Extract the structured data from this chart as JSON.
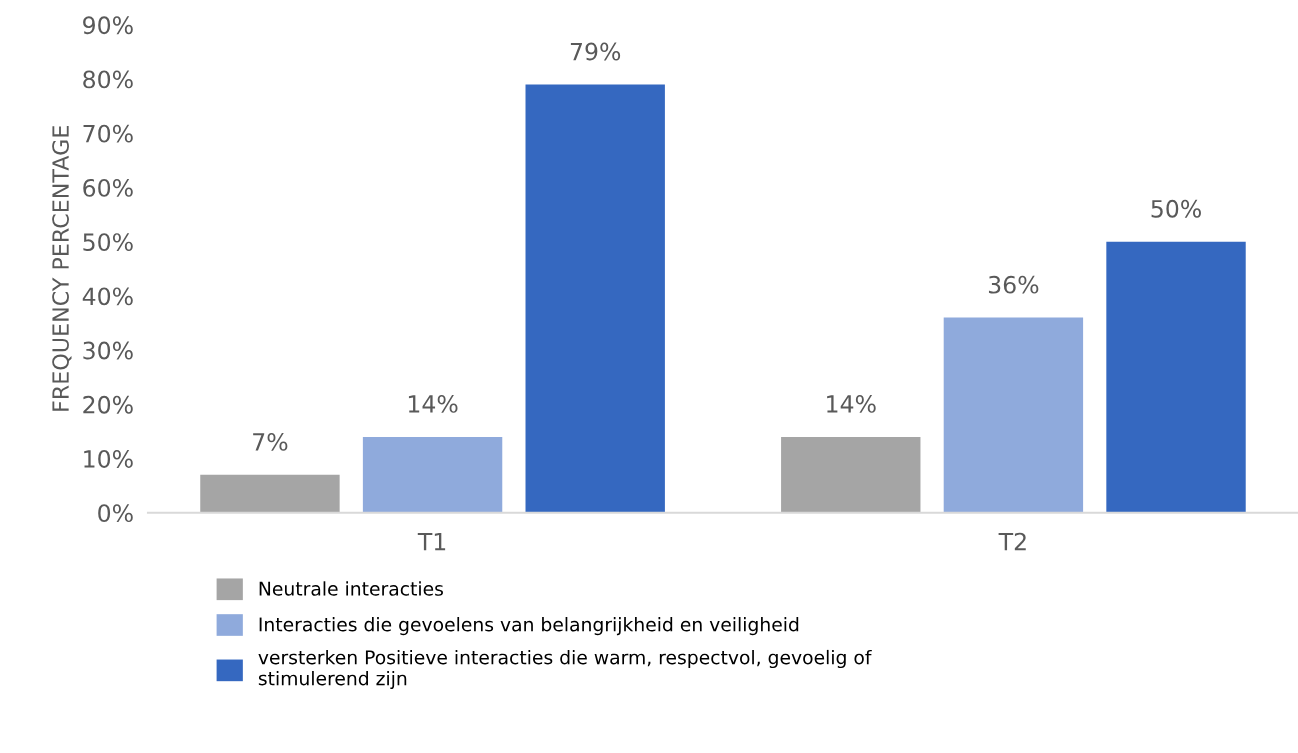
{
  "chart_data": {
    "type": "bar",
    "ylabel": "FREQUENCY PERCENTAGE",
    "categories": [
      "T1",
      "T2"
    ],
    "series": [
      {
        "name": "Neutrale interacties",
        "color": "#a5a5a5",
        "values": [
          7,
          14
        ],
        "value_labels": [
          "7%",
          "14%"
        ]
      },
      {
        "name": "Interacties die gevoelens van belangrijkheid en veiligheid",
        "color": "#8faadc",
        "values": [
          14,
          36
        ],
        "value_labels": [
          "14%",
          "36%"
        ]
      },
      {
        "name": "versterken Positieve interacties die warm, respectvol, gevoelig of\nstimulerend zijn",
        "color": "#3568c0",
        "values": [
          79,
          50
        ],
        "value_labels": [
          "79%",
          "50%"
        ]
      }
    ],
    "ylim": [
      0,
      90
    ],
    "yticks": [
      {
        "value": 0,
        "label": "0%"
      },
      {
        "value": 10,
        "label": "10%"
      },
      {
        "value": 20,
        "label": "20%"
      },
      {
        "value": 30,
        "label": "30%"
      },
      {
        "value": 40,
        "label": "40%"
      },
      {
        "value": 50,
        "label": "50%"
      },
      {
        "value": 60,
        "label": "60%"
      },
      {
        "value": 70,
        "label": "70%"
      },
      {
        "value": 80,
        "label": "80%"
      },
      {
        "value": 90,
        "label": "90%"
      }
    ],
    "grid": false,
    "legend": "bottom"
  }
}
